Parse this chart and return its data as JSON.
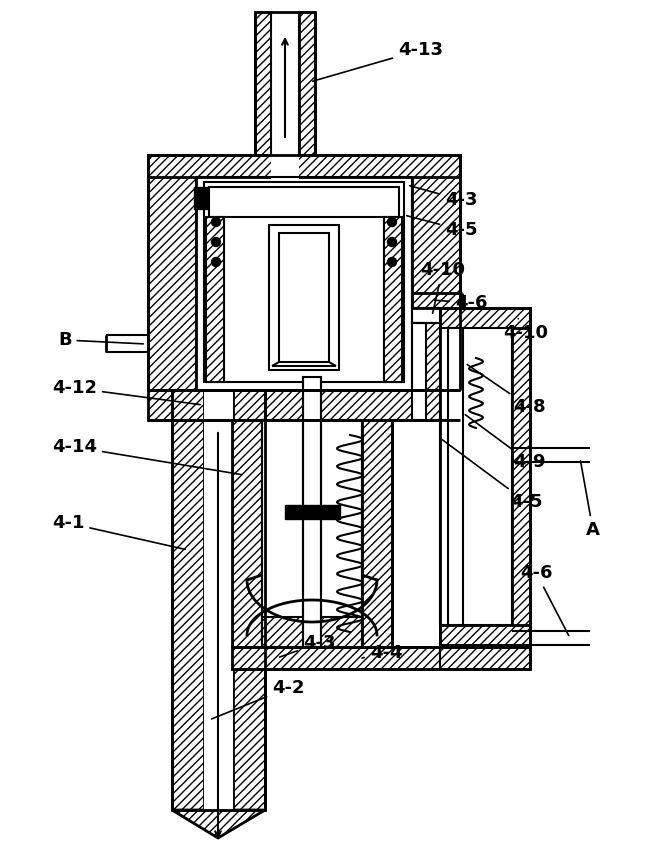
{
  "bg_color": "#ffffff",
  "lc": "#000000",
  "figsize": [
    6.72,
    8.68
  ],
  "dpi": 100,
  "xlim": [
    0,
    672
  ],
  "ylim": [
    868,
    0
  ]
}
